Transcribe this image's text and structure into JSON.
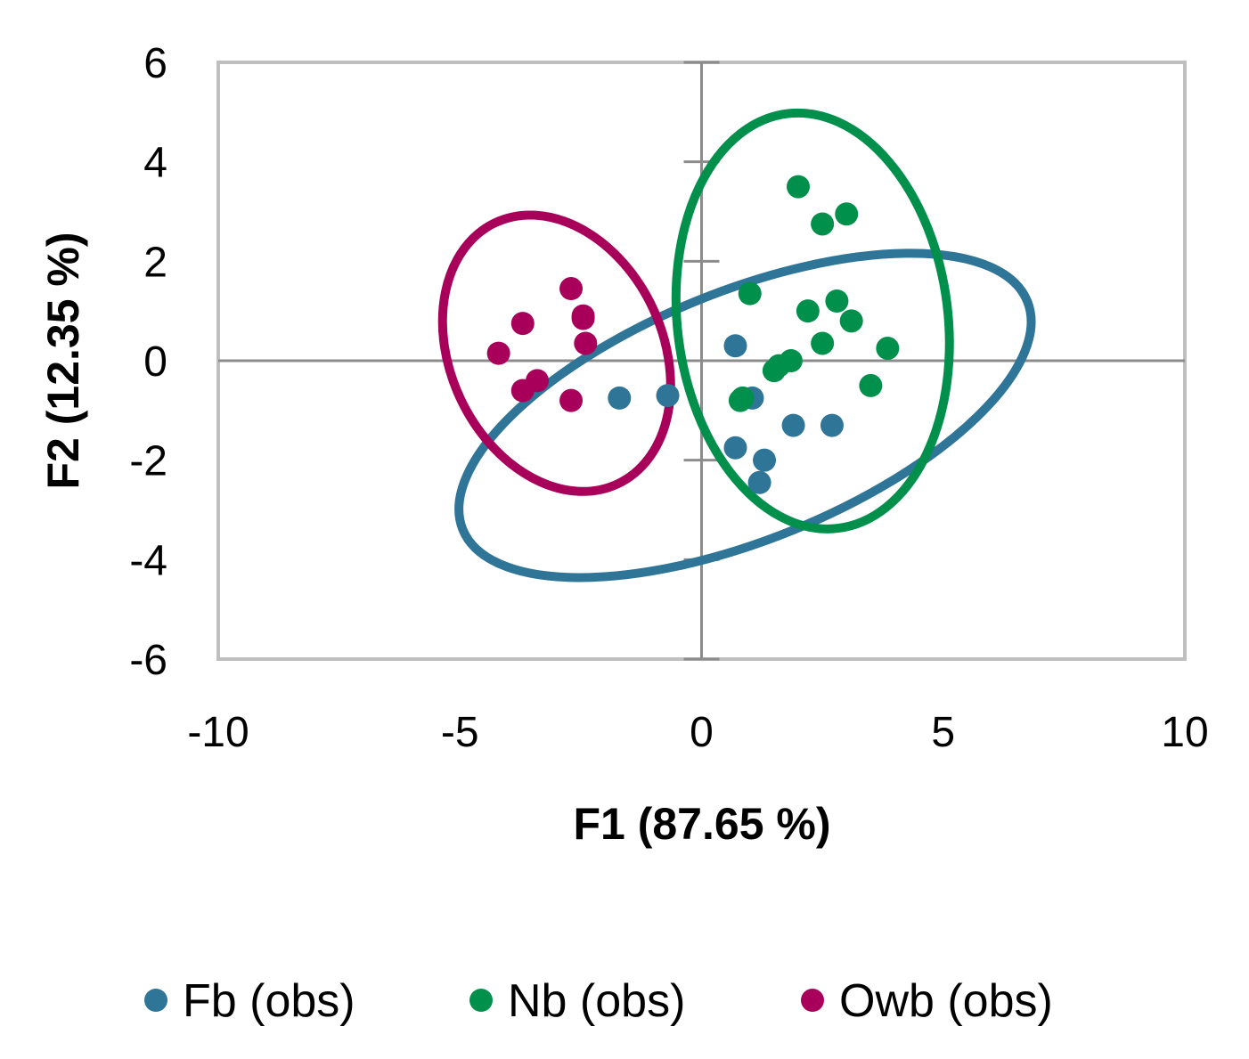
{
  "chart_data": {
    "type": "scatter",
    "xlabel": "F1 (87.65 %)",
    "ylabel": "F2 (12.35 %)",
    "xlim": [
      -10,
      10
    ],
    "ylim": [
      -6,
      6
    ],
    "xticks": [
      -10,
      -5,
      0,
      5,
      10
    ],
    "yticks": [
      -6,
      -4,
      -2,
      0,
      2,
      4,
      6
    ],
    "xtick_labels": [
      "-10",
      "-5",
      "0",
      "5",
      "10"
    ],
    "ytick_labels": [
      "-6",
      "-4",
      "-2",
      "0",
      "2",
      "4",
      "6"
    ],
    "grid": false,
    "legend_position": "bottom",
    "series": [
      {
        "name": "Fb (obs)",
        "color": "#2e7597",
        "points": [
          [
            -1.7,
            -0.75
          ],
          [
            -0.7,
            -0.7
          ],
          [
            0.7,
            0.3
          ],
          [
            1.05,
            -0.75
          ],
          [
            1.9,
            -1.3
          ],
          [
            2.7,
            -1.3
          ],
          [
            0.7,
            -1.75
          ],
          [
            1.3,
            -2.0
          ],
          [
            1.2,
            -2.45
          ]
        ],
        "ellipse": {
          "cx": 0.9,
          "cy": -1.1,
          "rx": 6.3,
          "ry": 2.5,
          "angle_deg": -22
        }
      },
      {
        "name": "Nb (obs)",
        "color": "#00904c",
        "points": [
          [
            2.0,
            3.5
          ],
          [
            3.0,
            2.95
          ],
          [
            2.5,
            2.75
          ],
          [
            1.0,
            1.35
          ],
          [
            2.8,
            1.2
          ],
          [
            2.2,
            1.0
          ],
          [
            3.1,
            0.8
          ],
          [
            2.5,
            0.35
          ],
          [
            3.85,
            0.25
          ],
          [
            1.85,
            0.0
          ],
          [
            1.6,
            -0.1
          ],
          [
            1.5,
            -0.2
          ],
          [
            3.5,
            -0.5
          ],
          [
            0.85,
            -0.75
          ],
          [
            0.8,
            -0.8
          ]
        ],
        "ellipse": {
          "cx": 2.3,
          "cy": 0.8,
          "rx": 2.8,
          "ry": 4.2,
          "angle_deg": -7
        }
      },
      {
        "name": "Owb (obs)",
        "color": "#a8005a",
        "points": [
          [
            -2.7,
            1.45
          ],
          [
            -2.45,
            0.9
          ],
          [
            -2.45,
            0.85
          ],
          [
            -3.7,
            0.75
          ],
          [
            -2.4,
            0.35
          ],
          [
            -4.2,
            0.15
          ],
          [
            -3.4,
            -0.4
          ],
          [
            -3.7,
            -0.6
          ],
          [
            -2.7,
            -0.8
          ]
        ],
        "ellipse": {
          "cx": -3.0,
          "cy": 0.15,
          "rx": 2.2,
          "ry": 2.9,
          "angle_deg": -25
        }
      }
    ]
  }
}
